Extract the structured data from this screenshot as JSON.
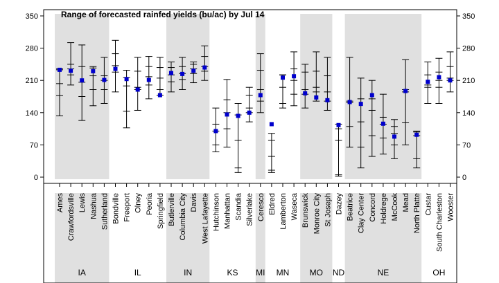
{
  "chart_data": {
    "type": "range",
    "title": "Range of forecasted rainfed yields (bu/ac) by Jul 14",
    "ylim": [
      -8,
      357
    ],
    "yticks": [
      0,
      70,
      140,
      210,
      280,
      350
    ],
    "ytick_labels": [
      "0",
      "70",
      "140",
      "210",
      "280",
      "350"
    ],
    "colors": {
      "band": "#e0e0e0",
      "marker": "#0000cc",
      "line": "#000000"
    },
    "groups": [
      {
        "state": "IA",
        "shaded": true,
        "sites": [
          {
            "name": "Ames",
            "min": 133,
            "q1": 177,
            "median": 203,
            "q3": 233,
            "max": 235,
            "forecast": 233
          },
          {
            "name": "Crawfordsville",
            "min": 200,
            "q1": 222,
            "median": 235,
            "q3": 245,
            "max": 292,
            "forecast": 231
          },
          {
            "name": "Lewis",
            "min": 123,
            "q1": 175,
            "median": 206,
            "q3": 240,
            "max": 287,
            "forecast": 210
          },
          {
            "name": "Nashua",
            "min": 155,
            "q1": 190,
            "median": 220,
            "q3": 237,
            "max": 240,
            "forecast": 230
          },
          {
            "name": "Sutherland",
            "min": 160,
            "q1": 190,
            "median": 210,
            "q3": 220,
            "max": 260,
            "forecast": 211
          }
        ]
      },
      {
        "state": "IL",
        "shaded": false,
        "sites": [
          {
            "name": "Bondville",
            "min": 185,
            "q1": 228,
            "median": 242,
            "q3": 268,
            "max": 297,
            "forecast": 235
          },
          {
            "name": "Freeport",
            "min": 107,
            "q1": 143,
            "median": 198,
            "q3": 216,
            "max": 232,
            "forecast": 213
          },
          {
            "name": "Olney",
            "min": 145,
            "q1": 190,
            "median": 195,
            "q3": 230,
            "max": 260,
            "forecast": 190
          },
          {
            "name": "Peoria",
            "min": 170,
            "q1": 200,
            "median": 218,
            "q3": 240,
            "max": 262,
            "forecast": 211
          },
          {
            "name": "Springfield",
            "min": 178,
            "q1": 190,
            "median": 215,
            "q3": 238,
            "max": 260,
            "forecast": 178
          }
        ]
      },
      {
        "state": "IN",
        "shaded": true,
        "sites": [
          {
            "name": "Butlerville",
            "min": 185,
            "q1": 207,
            "median": 222,
            "q3": 238,
            "max": 250,
            "forecast": 226
          },
          {
            "name": "Columbia City",
            "min": 190,
            "q1": 212,
            "median": 225,
            "q3": 240,
            "max": 260,
            "forecast": 224
          },
          {
            "name": "Davis",
            "min": 205,
            "q1": 225,
            "median": 235,
            "q3": 245,
            "max": 250,
            "forecast": 231
          },
          {
            "name": "West Lafayette",
            "min": 210,
            "q1": 230,
            "median": 240,
            "q3": 262,
            "max": 285,
            "forecast": 238
          }
        ]
      },
      {
        "state": "KS",
        "shaded": false,
        "sites": [
          {
            "name": "Hutchinson",
            "min": 55,
            "q1": 70,
            "median": 100,
            "q3": 115,
            "max": 150,
            "forecast": 100
          },
          {
            "name": "Manhattan",
            "min": 65,
            "q1": 105,
            "median": 140,
            "q3": 168,
            "max": 212,
            "forecast": 136
          },
          {
            "name": "Scandia",
            "min": 10,
            "q1": 20,
            "median": 80,
            "q3": 135,
            "max": 160,
            "forecast": 133
          },
          {
            "name": "Silverlake",
            "min": 120,
            "q1": 140,
            "median": 150,
            "q3": 178,
            "max": 195,
            "forecast": 140
          }
        ]
      },
      {
        "state": "MI",
        "shaded": true,
        "sites": [
          {
            "name": "Ceresco",
            "min": 140,
            "q1": 165,
            "median": 190,
            "q3": 232,
            "max": 268,
            "forecast": 178
          }
        ]
      },
      {
        "state": "MN",
        "shaded": false,
        "sites": [
          {
            "name": "Eldred",
            "min": 10,
            "q1": 15,
            "median": 45,
            "q3": 80,
            "max": 95,
            "forecast": 115
          },
          {
            "name": "Lamberton",
            "min": 150,
            "q1": 160,
            "median": 195,
            "q3": 222,
            "max": 222,
            "forecast": 216
          },
          {
            "name": "Waseca",
            "min": 155,
            "q1": 180,
            "median": 210,
            "q3": 235,
            "max": 272,
            "forecast": 219
          }
        ]
      },
      {
        "state": "MO",
        "shaded": true,
        "sites": [
          {
            "name": "Brunswick",
            "min": 150,
            "q1": 180,
            "median": 190,
            "q3": 228,
            "max": 245,
            "forecast": 182
          },
          {
            "name": "Monroe City",
            "min": 165,
            "q1": 185,
            "median": 195,
            "q3": 230,
            "max": 272,
            "forecast": 173
          },
          {
            "name": "St Joseph",
            "min": 145,
            "q1": 165,
            "median": 185,
            "q3": 220,
            "max": 260,
            "forecast": 167
          }
        ]
      },
      {
        "state": "ND",
        "shaded": false,
        "sites": [
          {
            "name": "Dazey",
            "min": 2,
            "q1": 5,
            "median": 80,
            "q3": 105,
            "max": 115,
            "forecast": 113
          }
        ]
      },
      {
        "state": "NE",
        "shaded": true,
        "sites": [
          {
            "name": "Beatrice",
            "min": 65,
            "q1": 110,
            "median": 162,
            "q3": 165,
            "max": 260,
            "forecast": 163
          },
          {
            "name": "Clay Center",
            "min": 20,
            "q1": 65,
            "median": 120,
            "q3": 170,
            "max": 215,
            "forecast": 159
          },
          {
            "name": "Concord",
            "min": 45,
            "q1": 90,
            "median": 145,
            "q3": 170,
            "max": 210,
            "forecast": 178
          },
          {
            "name": "Holdrege",
            "min": 50,
            "q1": 85,
            "median": 115,
            "q3": 130,
            "max": 180,
            "forecast": 116
          },
          {
            "name": "McCook",
            "min": 40,
            "q1": 70,
            "median": 95,
            "q3": 110,
            "max": 125,
            "forecast": 88
          },
          {
            "name": "Mead",
            "min": 70,
            "q1": 118,
            "median": 185,
            "q3": 190,
            "max": 255,
            "forecast": 187
          },
          {
            "name": "North Platte",
            "min": 20,
            "q1": 40,
            "median": 90,
            "q3": 98,
            "max": 100,
            "forecast": 92
          }
        ]
      },
      {
        "state": "OH",
        "shaded": false,
        "sites": [
          {
            "name": "Custar",
            "min": 160,
            "q1": 195,
            "median": 200,
            "q3": 222,
            "max": 250,
            "forecast": 207
          },
          {
            "name": "South Charleston",
            "min": 160,
            "q1": 195,
            "median": 210,
            "q3": 228,
            "max": 258,
            "forecast": 217
          },
          {
            "name": "Wooster",
            "min": 185,
            "q1": 210,
            "median": 215,
            "q3": 240,
            "max": 272,
            "forecast": 210
          }
        ]
      }
    ]
  }
}
